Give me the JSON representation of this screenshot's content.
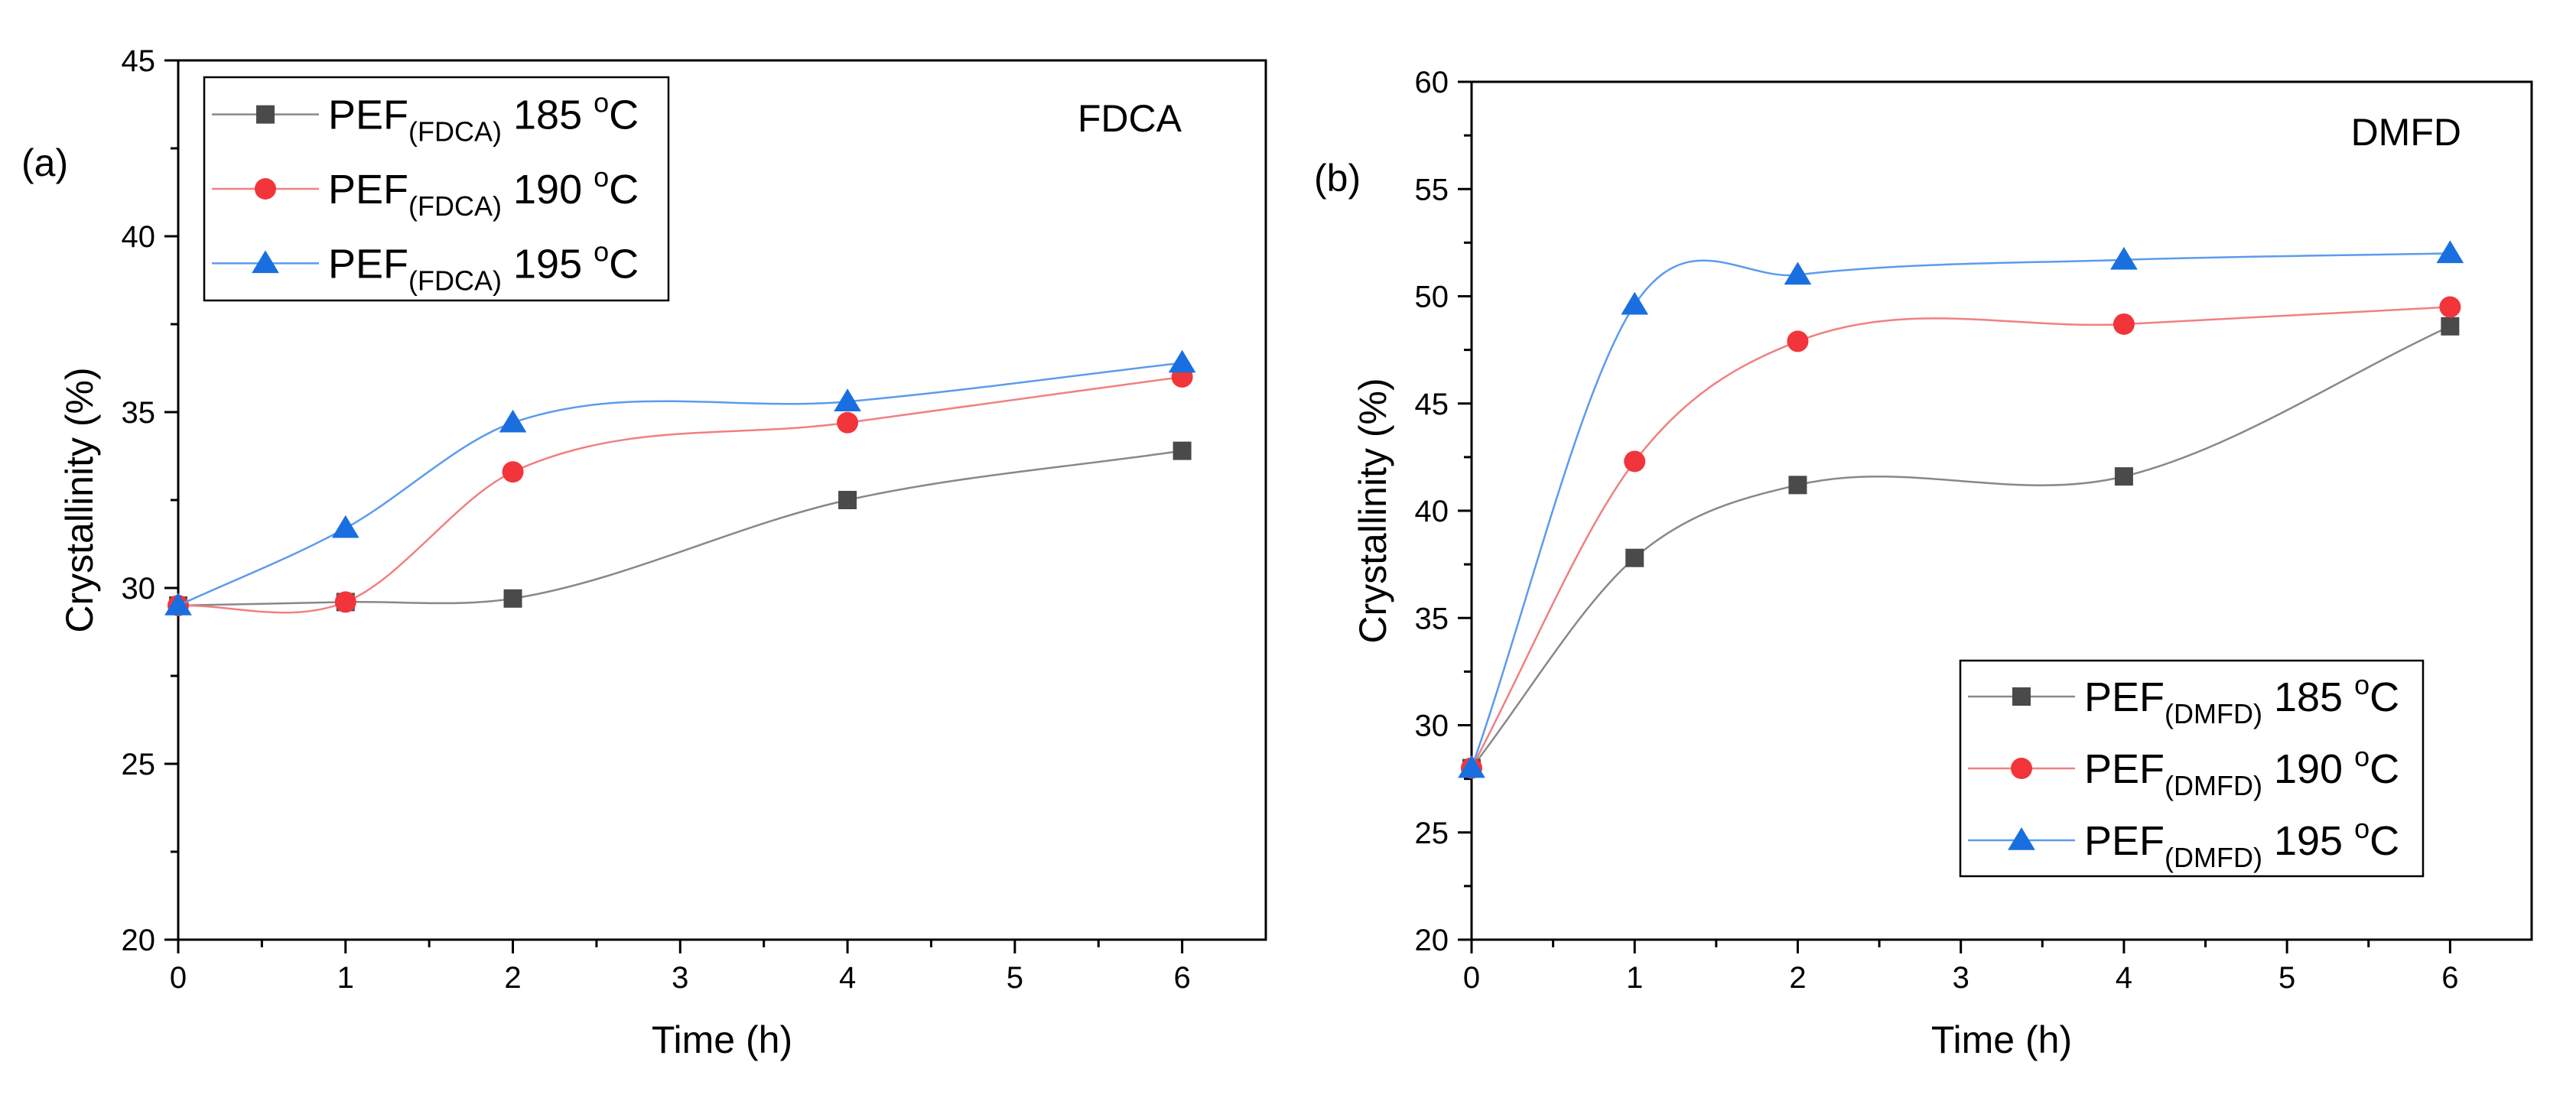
{
  "chart_data": [
    {
      "panel_label": "(a)",
      "type": "line",
      "annotation": "FDCA",
      "xlabel": "Time (h)",
      "ylabel": "Crystallinity (%)",
      "xlim": [
        0,
        6.5
      ],
      "ylim": [
        20,
        45
      ],
      "x_ticks": [
        "0",
        "1",
        "2",
        "3",
        "4",
        "5",
        "6"
      ],
      "y_ticks": [
        "20",
        "25",
        "30",
        "35",
        "40",
        "45"
      ],
      "legend_position": "top-left",
      "x": [
        0,
        1,
        2,
        4,
        6
      ],
      "series": [
        {
          "name": "PEF",
          "subscript": "(FDCA)",
          "temp": "185",
          "deg": "o",
          "unit": "C",
          "marker": "square",
          "color": "#4a4a4a",
          "line": "#888888",
          "values": [
            29.5,
            29.6,
            29.7,
            32.5,
            33.9
          ]
        },
        {
          "name": "PEF",
          "subscript": "(FDCA)",
          "temp": "190",
          "deg": "o",
          "unit": "C",
          "marker": "circle",
          "color": "#f2353a",
          "line": "#f08080",
          "values": [
            29.5,
            29.6,
            33.3,
            34.7,
            36.0
          ]
        },
        {
          "name": "PEF",
          "subscript": "(FDCA)",
          "temp": "195",
          "deg": "o",
          "unit": "C",
          "marker": "triangle",
          "color": "#1a6fe0",
          "line": "#5b9bee",
          "values": [
            29.5,
            31.7,
            34.7,
            35.3,
            36.4
          ]
        }
      ]
    },
    {
      "panel_label": "(b)",
      "type": "line",
      "annotation": "DMFD",
      "xlabel": "Time (h)",
      "ylabel": "Crystallinity (%)",
      "xlim": [
        0,
        6.5
      ],
      "ylim": [
        20,
        60
      ],
      "x_ticks": [
        "0",
        "1",
        "2",
        "3",
        "4",
        "5",
        "6"
      ],
      "y_ticks": [
        "20",
        "25",
        "30",
        "35",
        "40",
        "45",
        "50",
        "55",
        "60"
      ],
      "legend_position": "bottom-right",
      "x": [
        0,
        1,
        2,
        4,
        6
      ],
      "series": [
        {
          "name": "PEF",
          "subscript": "(DMFD)",
          "temp": "185",
          "deg": "o",
          "unit": "C",
          "marker": "square",
          "color": "#4a4a4a",
          "line": "#888888",
          "values": [
            28.0,
            37.8,
            41.2,
            41.6,
            48.6
          ]
        },
        {
          "name": "PEF",
          "subscript": "(DMFD)",
          "temp": "190",
          "deg": "o",
          "unit": "C",
          "marker": "circle",
          "color": "#f2353a",
          "line": "#f08080",
          "values": [
            28.0,
            42.3,
            47.9,
            48.7,
            49.5
          ]
        },
        {
          "name": "PEF",
          "subscript": "(DMFD)",
          "temp": "195",
          "deg": "o",
          "unit": "C",
          "marker": "triangle",
          "color": "#1a6fe0",
          "line": "#5b9bee",
          "values": [
            28.0,
            49.6,
            51.0,
            51.7,
            52.0
          ]
        }
      ]
    }
  ]
}
